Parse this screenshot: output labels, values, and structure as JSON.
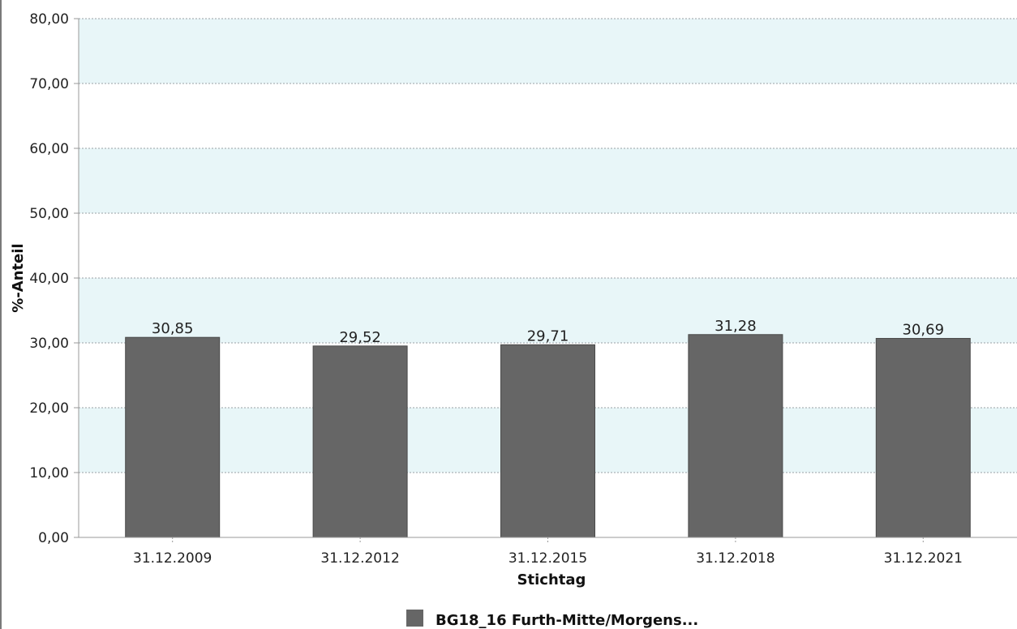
{
  "chart_data": {
    "type": "bar",
    "categories": [
      "31.12.2009",
      "31.12.2012",
      "31.12.2015",
      "31.12.2018",
      "31.12.2021"
    ],
    "series": [
      {
        "name": "BG18_16 Furth-Mitte/Morgens...",
        "values": [
          30.85,
          29.52,
          29.71,
          31.28,
          30.69
        ],
        "value_labels": [
          "30,85",
          "29,52",
          "29,71",
          "31,28",
          "30,69"
        ],
        "color": "#666666"
      }
    ],
    "xlabel": "Stichtag",
    "ylabel": "%-Anteil",
    "ylim": [
      0,
      80
    ],
    "yticks": [
      0,
      10,
      20,
      30,
      40,
      50,
      60,
      70,
      80
    ],
    "ytick_labels": [
      "0,00",
      "10,00",
      "20,00",
      "30,00",
      "40,00",
      "50,00",
      "60,00",
      "70,00",
      "80,00"
    ],
    "grid": true,
    "band_color": "#e8f6f8",
    "legend_position": "bottom-center"
  }
}
